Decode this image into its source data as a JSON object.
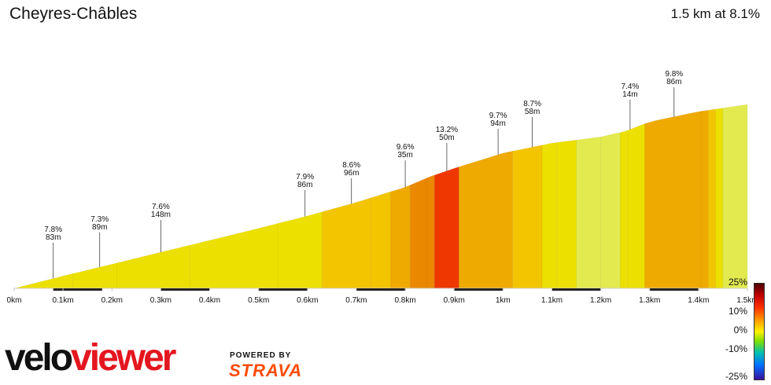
{
  "header": {
    "title": "Cheyres-Châbles",
    "summary": "1.5 km at 8.1%"
  },
  "branding": {
    "velo": "velo",
    "viewer": "viewer",
    "powered_by": "POWERED BY",
    "strava": "STRAVA"
  },
  "legend": {
    "labels": [
      "25%",
      "10%",
      "0%",
      "-10%",
      "-25%"
    ]
  },
  "colors": {
    "grade_le_7": "#e2ea4f",
    "grade_7_8": "#ece000",
    "grade_8_9": "#f2c500",
    "grade_9_10": "#eeaa00",
    "grade_10_12": "#ea8800",
    "grade_12_14": "#ee3800",
    "segment_bar": "#222222",
    "brand_red": "#e4161f",
    "strava_orange": "#fc4c02"
  },
  "chart_data": {
    "type": "area",
    "title": "Cheyres-Châbles",
    "x_unit": "km",
    "x_ticks": [
      "0km",
      "0.1km",
      "0.2km",
      "0.3km",
      "0.4km",
      "0.5km",
      "0.6km",
      "0.7km",
      "0.8km",
      "0.9km",
      "1km",
      "1.1km",
      "1.2km",
      "1.3km",
      "1.4km",
      "1.5km"
    ],
    "xlim": [
      0,
      1.5
    ],
    "elevation_profile": [
      {
        "x": 0.0,
        "y": 0
      },
      {
        "x": 0.1,
        "y": 7.8
      },
      {
        "x": 0.2,
        "y": 15.3
      },
      {
        "x": 0.3,
        "y": 22.9
      },
      {
        "x": 0.4,
        "y": 30.4
      },
      {
        "x": 0.5,
        "y": 38.0
      },
      {
        "x": 0.6,
        "y": 45.9
      },
      {
        "x": 0.7,
        "y": 54.5
      },
      {
        "x": 0.75,
        "y": 59.3
      },
      {
        "x": 0.8,
        "y": 64.1
      },
      {
        "x": 0.85,
        "y": 70.7
      },
      {
        "x": 0.9,
        "y": 76.0
      },
      {
        "x": 0.97,
        "y": 82.8
      },
      {
        "x": 1.0,
        "y": 85.7
      },
      {
        "x": 1.1,
        "y": 92.0
      },
      {
        "x": 1.2,
        "y": 96.0
      },
      {
        "x": 1.25,
        "y": 99.5
      },
      {
        "x": 1.3,
        "y": 105.5
      },
      {
        "x": 1.4,
        "y": 112.0
      },
      {
        "x": 1.5,
        "y": 116.5
      }
    ],
    "grade_bands": [
      {
        "x0": 0.0,
        "x1": 0.12,
        "grade": 7.8
      },
      {
        "x0": 0.12,
        "x1": 0.21,
        "grade": 7.3
      },
      {
        "x0": 0.21,
        "x1": 0.36,
        "grade": 7.6
      },
      {
        "x0": 0.36,
        "x1": 0.54,
        "grade": 7.4
      },
      {
        "x0": 0.54,
        "x1": 0.63,
        "grade": 7.9
      },
      {
        "x0": 0.63,
        "x1": 0.73,
        "grade": 8.6
      },
      {
        "x0": 0.73,
        "x1": 0.77,
        "grade": 8.9
      },
      {
        "x0": 0.77,
        "x1": 0.81,
        "grade": 9.6
      },
      {
        "x0": 0.81,
        "x1": 0.845,
        "grade": 10.5
      },
      {
        "x0": 0.845,
        "x1": 0.86,
        "grade": 11.5
      },
      {
        "x0": 0.86,
        "x1": 0.91,
        "grade": 13.2
      },
      {
        "x0": 0.91,
        "x1": 1.02,
        "grade": 9.7
      },
      {
        "x0": 1.02,
        "x1": 1.08,
        "grade": 8.7
      },
      {
        "x0": 1.08,
        "x1": 1.11,
        "grade": 7.9
      },
      {
        "x0": 1.11,
        "x1": 1.15,
        "grade": 7.3
      },
      {
        "x0": 1.15,
        "x1": 1.2,
        "grade": 6.5
      },
      {
        "x0": 1.2,
        "x1": 1.24,
        "grade": 7.0
      },
      {
        "x0": 1.24,
        "x1": 1.255,
        "grade": 7.9
      },
      {
        "x0": 1.255,
        "x1": 1.29,
        "grade": 7.4
      },
      {
        "x0": 1.29,
        "x1": 1.405,
        "grade": 9.8
      },
      {
        "x0": 1.405,
        "x1": 1.42,
        "grade": 9.2
      },
      {
        "x0": 1.42,
        "x1": 1.435,
        "grade": 8.4
      },
      {
        "x0": 1.435,
        "x1": 1.45,
        "grade": 7.4
      },
      {
        "x0": 1.45,
        "x1": 1.5,
        "grade": 6.5
      }
    ],
    "annotations": [
      {
        "x": 0.08,
        "grade": "7.8%",
        "length": "83m"
      },
      {
        "x": 0.175,
        "grade": "7.3%",
        "length": "89m"
      },
      {
        "x": 0.3,
        "grade": "7.6%",
        "length": "148m"
      },
      {
        "x": 0.595,
        "grade": "7.9%",
        "length": "86m"
      },
      {
        "x": 0.69,
        "grade": "8.6%",
        "length": "96m"
      },
      {
        "x": 0.8,
        "grade": "9.6%",
        "length": "35m"
      },
      {
        "x": 0.885,
        "grade": "13.2%",
        "length": "50m"
      },
      {
        "x": 0.99,
        "grade": "9.7%",
        "length": "94m"
      },
      {
        "x": 1.06,
        "grade": "8.7%",
        "length": "58m"
      },
      {
        "x": 1.26,
        "grade": "7.4%",
        "length": "14m"
      },
      {
        "x": 1.35,
        "grade": "9.8%",
        "length": "86m"
      }
    ],
    "segment_bars": [
      {
        "x0": 0.08,
        "x1": 0.18
      },
      {
        "x0": 0.3,
        "x1": 0.4
      },
      {
        "x0": 0.5,
        "x1": 0.6
      },
      {
        "x0": 0.7,
        "x1": 0.8
      },
      {
        "x0": 0.9,
        "x1": 1.0
      },
      {
        "x0": 1.1,
        "x1": 1.2
      },
      {
        "x0": 1.3,
        "x1": 1.4
      }
    ]
  }
}
